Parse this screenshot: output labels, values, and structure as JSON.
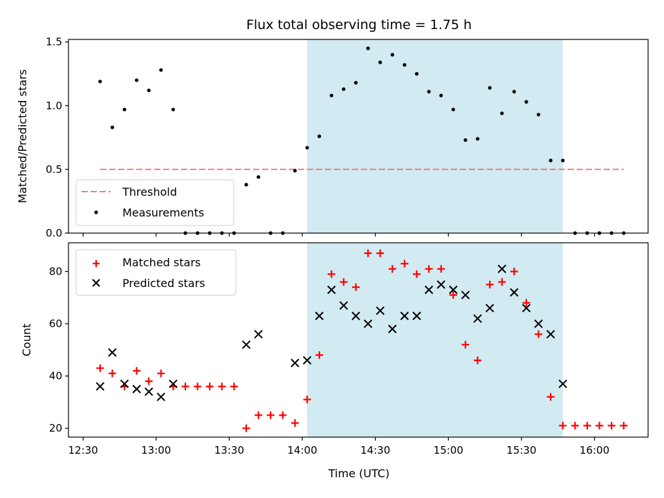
{
  "chart_data": [
    {
      "type": "scatter",
      "title": "Flux total observing time = 1.75 h",
      "ylabel": "Matched/Predicted stars",
      "ylim": [
        0,
        1.52
      ],
      "yticks": [
        "0.0",
        "0.5",
        "1.0",
        "1.5"
      ],
      "x_range": [
        "12:24",
        "16:22"
      ],
      "shaded_interval": [
        "14:02",
        "15:47"
      ],
      "shade_color": "#add8e6",
      "legend": {
        "position": "lower-left",
        "entries": [
          "Threshold",
          "Measurements"
        ]
      },
      "threshold": {
        "name": "Threshold",
        "value": 0.5,
        "x": [
          "12:37",
          "16:12"
        ],
        "color": "#f08080",
        "style": "dashed"
      },
      "series": [
        {
          "name": "Measurements",
          "color": "#000000",
          "marker": "dot",
          "points": [
            [
              "12:37",
              1.19
            ],
            [
              "12:42",
              0.83
            ],
            [
              "12:47",
              0.97
            ],
            [
              "12:52",
              1.2
            ],
            [
              "12:57",
              1.12
            ],
            [
              "13:02",
              1.28
            ],
            [
              "13:07",
              0.97
            ],
            [
              "13:12",
              0.0
            ],
            [
              "13:17",
              0.0
            ],
            [
              "13:22",
              0.0
            ],
            [
              "13:27",
              0.0
            ],
            [
              "13:32",
              0.0
            ],
            [
              "13:37",
              0.38
            ],
            [
              "13:42",
              0.44
            ],
            [
              "13:47",
              0.0
            ],
            [
              "13:52",
              0.0
            ],
            [
              "13:57",
              0.49
            ],
            [
              "14:02",
              0.67
            ],
            [
              "14:07",
              0.76
            ],
            [
              "14:12",
              1.08
            ],
            [
              "14:17",
              1.13
            ],
            [
              "14:22",
              1.18
            ],
            [
              "14:27",
              1.45
            ],
            [
              "14:32",
              1.34
            ],
            [
              "14:37",
              1.4
            ],
            [
              "14:42",
              1.32
            ],
            [
              "14:47",
              1.25
            ],
            [
              "14:52",
              1.11
            ],
            [
              "14:57",
              1.08
            ],
            [
              "15:02",
              0.97
            ],
            [
              "15:07",
              0.73
            ],
            [
              "15:12",
              0.74
            ],
            [
              "15:17",
              1.14
            ],
            [
              "15:22",
              0.94
            ],
            [
              "15:27",
              1.11
            ],
            [
              "15:32",
              1.03
            ],
            [
              "15:37",
              0.93
            ],
            [
              "15:42",
              0.57
            ],
            [
              "15:47",
              0.57
            ],
            [
              "15:52",
              0.0
            ],
            [
              "15:57",
              0.0
            ],
            [
              "16:02",
              0.0
            ],
            [
              "16:07",
              0.0
            ],
            [
              "16:12",
              0.0
            ]
          ]
        }
      ]
    },
    {
      "type": "scatter",
      "xlabel": "Time (UTC)",
      "ylabel": "Count",
      "ylim": [
        16.6,
        91
      ],
      "yticks": [
        "20",
        "40",
        "60",
        "80"
      ],
      "xticks": [
        "12:30",
        "13:00",
        "13:30",
        "14:00",
        "14:30",
        "15:00",
        "15:30",
        "16:00"
      ],
      "x_range": [
        "12:24",
        "16:22"
      ],
      "shaded_interval": [
        "14:02",
        "15:47"
      ],
      "shade_color": "#add8e6",
      "legend": {
        "position": "top-left",
        "entries": [
          "Matched stars",
          "Predicted stars"
        ]
      },
      "series": [
        {
          "name": "Matched stars",
          "color": "#ff0000",
          "marker": "plus",
          "points": [
            [
              "12:37",
              43
            ],
            [
              "12:42",
              41
            ],
            [
              "12:47",
              36
            ],
            [
              "12:52",
              42
            ],
            [
              "12:57",
              38
            ],
            [
              "13:02",
              41
            ],
            [
              "13:07",
              36
            ],
            [
              "13:12",
              36
            ],
            [
              "13:17",
              36
            ],
            [
              "13:22",
              36
            ],
            [
              "13:27",
              36
            ],
            [
              "13:32",
              36
            ],
            [
              "13:37",
              20
            ],
            [
              "13:42",
              25
            ],
            [
              "13:47",
              25
            ],
            [
              "13:52",
              25
            ],
            [
              "13:57",
              22
            ],
            [
              "14:02",
              31
            ],
            [
              "14:07",
              48
            ],
            [
              "14:12",
              79
            ],
            [
              "14:17",
              76
            ],
            [
              "14:22",
              74
            ],
            [
              "14:27",
              87
            ],
            [
              "14:32",
              87
            ],
            [
              "14:37",
              81
            ],
            [
              "14:42",
              83
            ],
            [
              "14:47",
              79
            ],
            [
              "14:52",
              81
            ],
            [
              "14:57",
              81
            ],
            [
              "15:02",
              71
            ],
            [
              "15:07",
              52
            ],
            [
              "15:12",
              46
            ],
            [
              "15:17",
              75
            ],
            [
              "15:22",
              76
            ],
            [
              "15:27",
              80
            ],
            [
              "15:32",
              68
            ],
            [
              "15:37",
              56
            ],
            [
              "15:42",
              32
            ],
            [
              "15:47",
              21
            ],
            [
              "15:52",
              21
            ],
            [
              "15:57",
              21
            ],
            [
              "16:02",
              21
            ],
            [
              "16:07",
              21
            ],
            [
              "16:12",
              21
            ]
          ]
        },
        {
          "name": "Predicted stars",
          "color": "#000000",
          "marker": "x",
          "points": [
            [
              "12:37",
              36
            ],
            [
              "12:42",
              49
            ],
            [
              "12:47",
              37
            ],
            [
              "12:52",
              35
            ],
            [
              "12:57",
              34
            ],
            [
              "13:02",
              32
            ],
            [
              "13:07",
              37
            ],
            [
              "13:37",
              52
            ],
            [
              "13:42",
              56
            ],
            [
              "13:57",
              45
            ],
            [
              "14:02",
              46
            ],
            [
              "14:07",
              63
            ],
            [
              "14:12",
              73
            ],
            [
              "14:17",
              67
            ],
            [
              "14:22",
              63
            ],
            [
              "14:27",
              60
            ],
            [
              "14:32",
              65
            ],
            [
              "14:37",
              58
            ],
            [
              "14:42",
              63
            ],
            [
              "14:47",
              63
            ],
            [
              "14:52",
              73
            ],
            [
              "14:57",
              75
            ],
            [
              "15:02",
              73
            ],
            [
              "15:07",
              71
            ],
            [
              "15:12",
              62
            ],
            [
              "15:17",
              66
            ],
            [
              "15:22",
              81
            ],
            [
              "15:27",
              72
            ],
            [
              "15:32",
              66
            ],
            [
              "15:37",
              60
            ],
            [
              "15:42",
              56
            ],
            [
              "15:47",
              37
            ]
          ]
        }
      ]
    }
  ]
}
